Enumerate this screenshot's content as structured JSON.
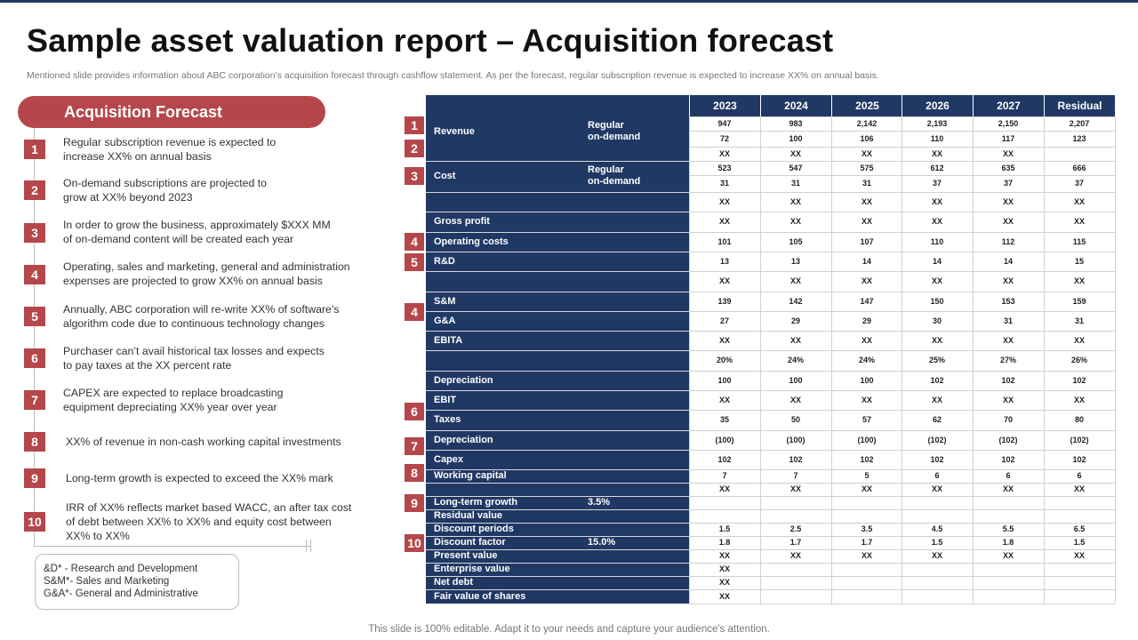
{
  "page": {
    "title": "Sample asset valuation report – Acquisition forecast",
    "subtitle": "Mentioned slide provides information about ABC corporation’s acquisition forecast through cashflow statement. As per the forecast, regular subscription revenue is expected to increase XX% on annual basis.",
    "footer": "This slide is 100% editable. Adapt it to your needs and capture your audience's attention."
  },
  "forecast": {
    "header": "Acquisition Forecast",
    "items": [
      {
        "num": "1",
        "text": "Regular subscription revenue  is expected to\nincrease XX%  on annual basis"
      },
      {
        "num": "2",
        "text": "On-demand  subscriptions are projected to\ngrow at XX%  beyond 2023"
      },
      {
        "num": "3",
        "text": "In order to grow the business, approximately $XXX  MM\nof on-demand content will be created each year"
      },
      {
        "num": "4",
        "text": "Operating, sales and marketing, general and administration\nexpenses are projected to grow XX%  on annual basis"
      },
      {
        "num": "5",
        "text": "Annually, ABC corporation will re-write  XX%  of software’s\nalgorithm code due to continuous technology changes"
      },
      {
        "num": "6",
        "text": "Purchaser can’t avail historical tax losses and expects\nto pay taxes at the XX  percent rate"
      },
      {
        "num": "7",
        "text": "CAPEX are expected to replace broadcasting\nequipment depreciating XX%  year over year"
      },
      {
        "num": "8",
        "text": "XX%  of revenue  in non-cash working capital investments"
      },
      {
        "num": "9",
        "text": "Long-term growth  is expected to exceed the XX%  mark"
      },
      {
        "num": "10",
        "text": "IRR of XX%  reflects market based WACC, an after tax cost\nof debt between  XX%  to XX%  and equity cost between\nXX%  to XX%"
      }
    ],
    "legend": [
      "&D* - Research and Development",
      "S&M*- Sales and Marketing",
      "G&A*- General and Administrative"
    ]
  },
  "table": {
    "years": [
      "2023",
      "2024",
      "2025",
      "2026",
      "2027",
      "Residual"
    ],
    "rows": [
      {
        "label": "Revenue",
        "sub": "Regular\non-demand",
        "values": [
          "947",
          "983",
          "2,142",
          "2,193",
          "2,150",
          "2,207"
        ]
      },
      {
        "label": "",
        "sub": "",
        "values": [
          "72",
          "100",
          "106",
          "110",
          "117",
          "123"
        ]
      },
      {
        "label": "",
        "sub": "",
        "values": [
          "XX",
          "XX",
          "XX",
          "XX",
          "XX",
          ""
        ]
      },
      {
        "label": "Cost",
        "sub": "Regular\non-demand",
        "values": [
          "523",
          "547",
          "575",
          "612",
          "635",
          "666"
        ]
      },
      {
        "label": "",
        "sub": "",
        "values": [
          "31",
          "31",
          "31",
          "37",
          "37",
          "37"
        ]
      },
      {
        "label": "",
        "sub": "",
        "values": [
          "XX",
          "XX",
          "XX",
          "XX",
          "XX",
          "XX"
        ]
      },
      {
        "label": "Gross profit",
        "sub": "",
        "values": [
          "XX",
          "XX",
          "XX",
          "XX",
          "XX",
          "XX"
        ]
      },
      {
        "label": "Operating costs",
        "sub": "",
        "values": [
          "101",
          "105",
          "107",
          "110",
          "112",
          "115"
        ]
      },
      {
        "label": "R&D",
        "sub": "",
        "values": [
          "13",
          "13",
          "14",
          "14",
          "14",
          "15"
        ]
      },
      {
        "label": "",
        "sub": "",
        "values": [
          "XX",
          "XX",
          "XX",
          "XX",
          "XX",
          "XX"
        ]
      },
      {
        "label": "S&M",
        "sub": "",
        "values": [
          "139",
          "142",
          "147",
          "150",
          "153",
          "159"
        ]
      },
      {
        "label": "G&A",
        "sub": "",
        "values": [
          "27",
          "29",
          "29",
          "30",
          "31",
          "31"
        ]
      },
      {
        "label": "EBITA",
        "sub": "",
        "values": [
          "XX",
          "XX",
          "XX",
          "XX",
          "XX",
          "XX"
        ]
      },
      {
        "label": "",
        "sub": "",
        "values": [
          "20%",
          "24%",
          "24%",
          "25%",
          "27%",
          "26%"
        ]
      },
      {
        "label": "Depreciation",
        "sub": "",
        "values": [
          "100",
          "100",
          "100",
          "102",
          "102",
          "102"
        ]
      },
      {
        "label": "EBIT",
        "sub": "",
        "values": [
          "XX",
          "XX",
          "XX",
          "XX",
          "XX",
          "XX"
        ]
      },
      {
        "label": "Taxes",
        "sub": "",
        "values": [
          "35",
          "50",
          "57",
          "62",
          "70",
          "80"
        ]
      },
      {
        "label": "Depreciation",
        "sub": "",
        "values": [
          "(100)",
          "(100)",
          "(100)",
          "(102)",
          "(102)",
          "(102)"
        ]
      },
      {
        "label": "Capex",
        "sub": "",
        "values": [
          "102",
          "102",
          "102",
          "102",
          "102",
          "102"
        ]
      },
      {
        "label": "Working capital",
        "sub": "",
        "values": [
          "7",
          "7",
          "5",
          "6",
          "6",
          "6"
        ]
      },
      {
        "label": "",
        "sub": "",
        "values": [
          "XX",
          "XX",
          "XX",
          "XX",
          "XX",
          "XX"
        ]
      },
      {
        "label": "Long-term growth",
        "sub": "3.5%",
        "values": [
          "",
          "",
          "",
          "",
          "",
          ""
        ]
      },
      {
        "label": "Residual value",
        "sub": "",
        "values": [
          "",
          "",
          "",
          "",
          "",
          ""
        ]
      },
      {
        "label": "Discount periods",
        "sub": "",
        "values": [
          "1.5",
          "2.5",
          "3.5",
          "4.5",
          "5.5",
          "6.5"
        ]
      },
      {
        "label": "Discount factor",
        "sub": "15.0%",
        "values": [
          "1.8",
          "1.7",
          "1.7",
          "1.5",
          "1.8",
          "1.5"
        ]
      },
      {
        "label": "Present value",
        "sub": "",
        "values": [
          "XX",
          "XX",
          "XX",
          "XX",
          "XX",
          "XX"
        ]
      },
      {
        "label": "Enterprise value",
        "sub": "",
        "values": [
          "XX",
          "",
          "",
          "",
          "",
          ""
        ]
      },
      {
        "label": "Net debt",
        "sub": "",
        "values": [
          "XX",
          "",
          "",
          "",
          "",
          ""
        ]
      },
      {
        "label": "Fair value of shares",
        "sub": "",
        "values": [
          "XX",
          "",
          "",
          "",
          "",
          ""
        ]
      }
    ],
    "markers": [
      {
        "num": "1"
      },
      {
        "num": "2"
      },
      {
        "num": "3"
      },
      {
        "num": "4"
      },
      {
        "num": "5"
      },
      {
        "num": "4"
      },
      {
        "num": "6"
      },
      {
        "num": "7"
      },
      {
        "num": "8"
      },
      {
        "num": "9"
      },
      {
        "num": "10"
      }
    ]
  }
}
